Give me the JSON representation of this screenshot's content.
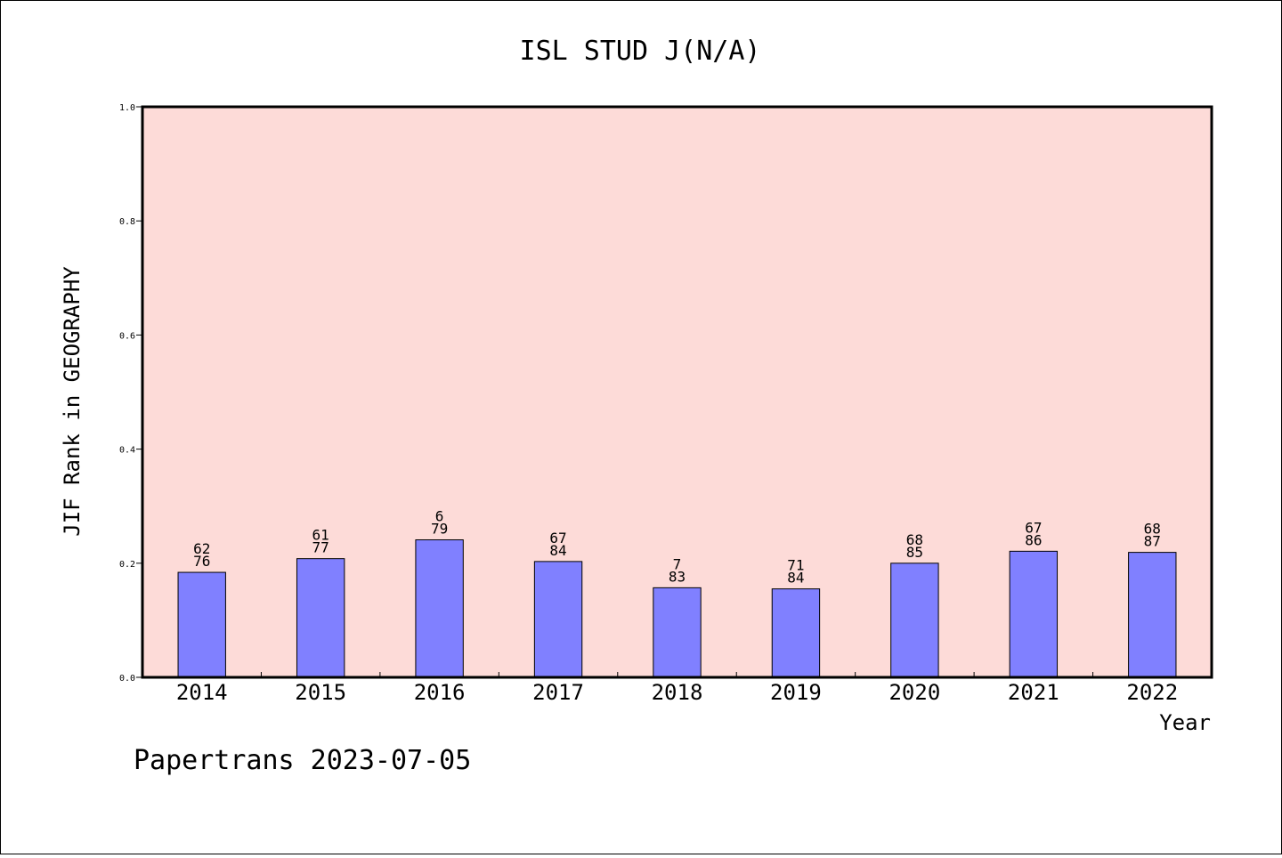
{
  "chart_data": {
    "type": "bar",
    "title": "ISL STUD J(N/A)",
    "xlabel": "Year",
    "ylabel": "JIF Rank in GEOGRAPHY",
    "ylim": [
      0,
      1.0
    ],
    "yticks": [
      "0.0",
      "0.2",
      "0.4",
      "0.6",
      "0.8",
      "1.0"
    ],
    "grid": false,
    "categories": [
      "2014",
      "2015",
      "2016",
      "2017",
      "2018",
      "2019",
      "2020",
      "2021",
      "2022"
    ],
    "values": [
      0.184,
      0.208,
      0.241,
      0.203,
      0.157,
      0.155,
      0.2,
      0.221,
      0.219
    ],
    "bar_labels": [
      {
        "top": "62",
        "bottom": "76"
      },
      {
        "top": "61",
        "bottom": "77"
      },
      {
        "top": "6",
        "bottom": "79"
      },
      {
        "top": "67",
        "bottom": "84"
      },
      {
        "top": "7",
        "bottom": "83"
      },
      {
        "top": "71",
        "bottom": "84"
      },
      {
        "top": "68",
        "bottom": "85"
      },
      {
        "top": "67",
        "bottom": "86"
      },
      {
        "top": "68",
        "bottom": "87"
      }
    ],
    "colors": {
      "plot_background": "#fddbd8",
      "bar_fill": "#8080ff",
      "bar_edge": "#000000"
    }
  },
  "footer": "Papertrans 2023-07-05"
}
